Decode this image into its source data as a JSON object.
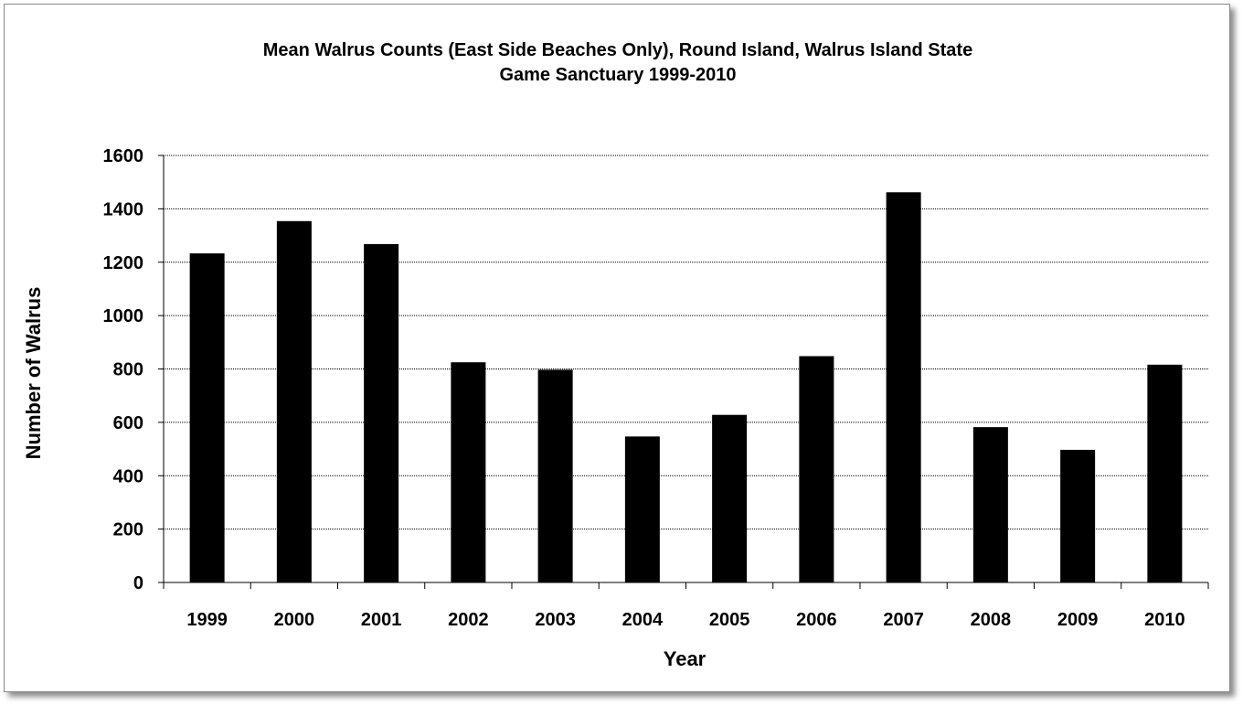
{
  "chart_data": {
    "type": "bar",
    "title": "Mean Walrus Counts (East Side Beaches Only), Round Island, Walrus Island State",
    "subtitle": "Game Sanctuary 1999-2010",
    "xlabel": "Year",
    "ylabel": "Number of Walrus",
    "categories": [
      "1999",
      "2000",
      "2001",
      "2002",
      "2003",
      "2004",
      "2005",
      "2006",
      "2007",
      "2008",
      "2009",
      "2010"
    ],
    "values": [
      1233,
      1354,
      1268,
      825,
      797,
      547,
      628,
      848,
      1462,
      582,
      497,
      816
    ],
    "ylim": [
      0,
      1600
    ],
    "yticks": [
      "0",
      "200",
      "400",
      "600",
      "800",
      "1000",
      "1200",
      "1400",
      "1600"
    ],
    "grid": true,
    "bar_color": "#000000",
    "legend": "none"
  }
}
